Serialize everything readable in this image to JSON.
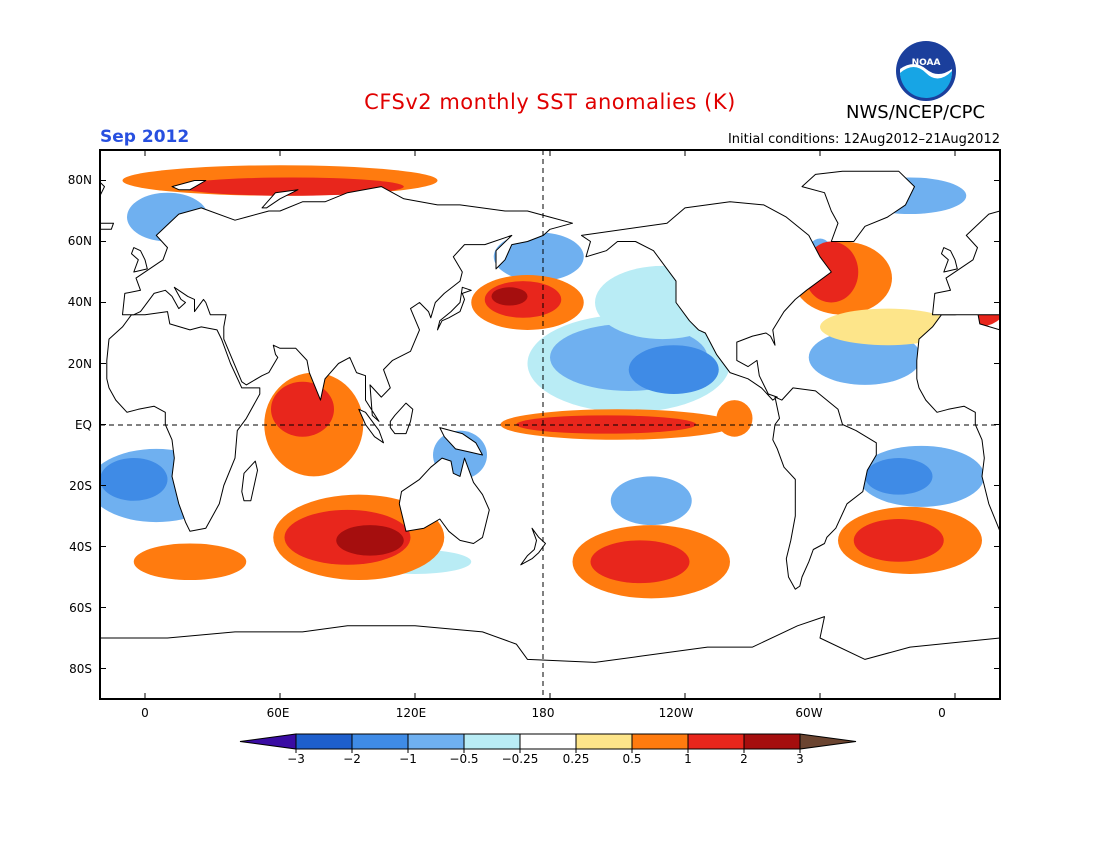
{
  "header": {
    "title": "CFSv2 monthly SST anomalies (K)",
    "valid_month": "Sep 2012",
    "agency": "NWS/NCEP/CPC",
    "initial_conditions": "Initial conditions: 12Aug2012–21Aug2012",
    "logo_text": "NOAA"
  },
  "map": {
    "projection": "cylindrical equidistant",
    "variable": "SST anomaly",
    "units": "K",
    "lat_labels": [
      "80N",
      "60N",
      "40N",
      "20N",
      "EQ",
      "20S",
      "40S",
      "60S",
      "80S"
    ],
    "lon_labels": [
      "0",
      "60E",
      "120E",
      "180",
      "120W",
      "60W",
      "0"
    ],
    "reference_lines": [
      "Equator",
      "180°"
    ],
    "anomaly_regions": [
      {
        "region": "Equatorial central-eastern Pacific",
        "lon": [
          160,
          260
        ],
        "lat": [
          -3,
          3
        ],
        "anomaly": "1 to 2"
      },
      {
        "region": "North Pacific (Kuroshio extension)",
        "lon": [
          148,
          190
        ],
        "lat": [
          33,
          47
        ],
        "anomaly": "1 to 2"
      },
      {
        "region": "Eastern tropical/subtropical North Pacific",
        "lon": [
          170,
          255
        ],
        "lat": [
          10,
          30
        ],
        "anomaly": "-1 to -0.5"
      },
      {
        "region": "Western Indian Ocean",
        "lon": [
          45,
          95
        ],
        "lat": [
          -15,
          15
        ],
        "anomaly": "0.5 to 1"
      },
      {
        "region": "Southern Indian Ocean",
        "lon": [
          60,
          130
        ],
        "lat": [
          -50,
          -25
        ],
        "anomaly": "0.5 to 2"
      },
      {
        "region": "Arctic margins (Barents/Kara)",
        "lon": [
          20,
          110
        ],
        "lat": [
          70,
          82
        ],
        "anomaly": "1 to 3"
      },
      {
        "region": "Northwest Atlantic",
        "lon": [
          285,
          330
        ],
        "lat": [
          38,
          62
        ],
        "anomaly": "1 to 2"
      },
      {
        "region": "South Pacific mid-latitudes",
        "lon": [
          195,
          255
        ],
        "lat": [
          -55,
          -35
        ],
        "anomaly": "0.5 to 2"
      },
      {
        "region": "South Atlantic",
        "lon": [
          310,
          360
        ],
        "lat": [
          -48,
          -28
        ],
        "anomaly": "0.5 to 2"
      },
      {
        "region": "Tropical South Atlantic",
        "lon": [
          320,
          360
        ],
        "lat": [
          -25,
          -5
        ],
        "anomaly": "-1 to -0.5"
      },
      {
        "region": "North Atlantic subtropics",
        "lon": [
          300,
          340
        ],
        "lat": [
          15,
          30
        ],
        "anomaly": "-1 to -0.25"
      }
    ]
  },
  "colorbar": {
    "labels": [
      "−3",
      "−2",
      "−1",
      "−0.5",
      "−0.25",
      "0.25",
      "0.5",
      "1",
      "2",
      "3"
    ],
    "colors": [
      "#3a0ca3",
      "#1e5fcc",
      "#3f8be6",
      "#6fb0f0",
      "#b9ecf5",
      "#ffffff",
      "#fde58a",
      "#ff7b0f",
      "#e8261c",
      "#a50e0e",
      "#6b4430"
    ]
  }
}
